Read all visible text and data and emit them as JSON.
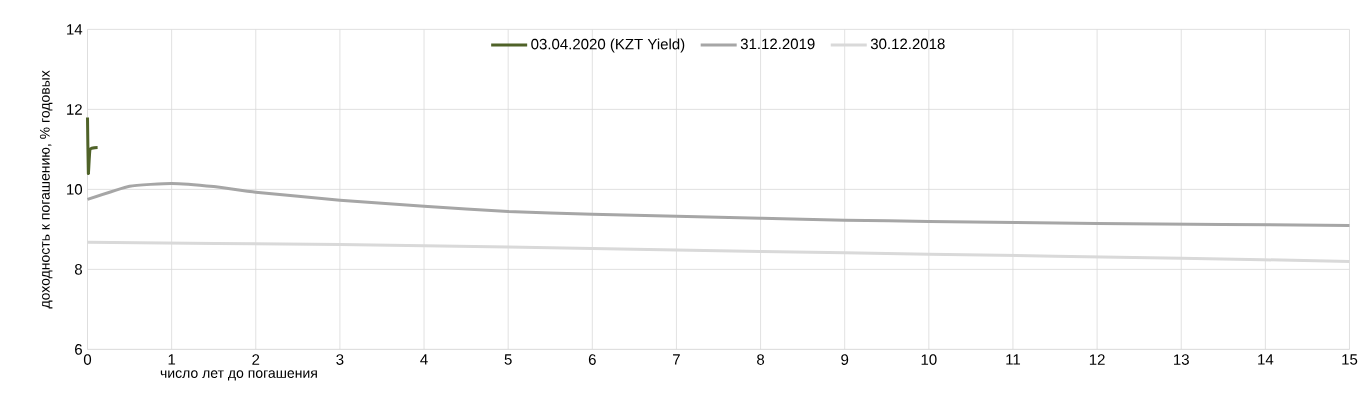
{
  "chart_data": {
    "type": "line",
    "xlabel": "число лет до погашения",
    "ylabel": "доходность к погашению, % годовых",
    "xlim": [
      0,
      15
    ],
    "xticks": [
      0,
      1,
      2,
      3,
      4,
      5,
      6,
      7,
      8,
      9,
      10,
      11,
      12,
      13,
      14,
      15
    ],
    "ylim": [
      6,
      14
    ],
    "yticks": [
      6,
      8,
      10,
      12,
      14
    ],
    "grid": true,
    "legend": "top",
    "marker": "none",
    "line_style": "solid",
    "series": [
      {
        "name": "03.04.2020 (KZT Yield)",
        "color": "#4f6228",
        "x": [
          0,
          0.01,
          0.03,
          0.12
        ],
        "values": [
          11.8,
          10.4,
          11.0,
          11.05
        ]
      },
      {
        "name": "31.12.2019",
        "color": "#a6a6a6",
        "x": [
          0,
          0.5,
          1,
          1.5,
          2,
          3,
          4,
          5,
          6,
          7,
          8,
          9,
          10,
          12,
          15
        ],
        "values": [
          9.75,
          10.08,
          10.15,
          10.07,
          9.93,
          9.73,
          9.58,
          9.45,
          9.38,
          9.33,
          9.28,
          9.23,
          9.2,
          9.15,
          9.1
        ]
      },
      {
        "name": "30.12.2018",
        "color": "#d9d9d9",
        "x": [
          0,
          3,
          5,
          8,
          10,
          13,
          15
        ],
        "values": [
          8.68,
          8.62,
          8.56,
          8.45,
          8.38,
          8.28,
          8.2
        ]
      }
    ]
  }
}
